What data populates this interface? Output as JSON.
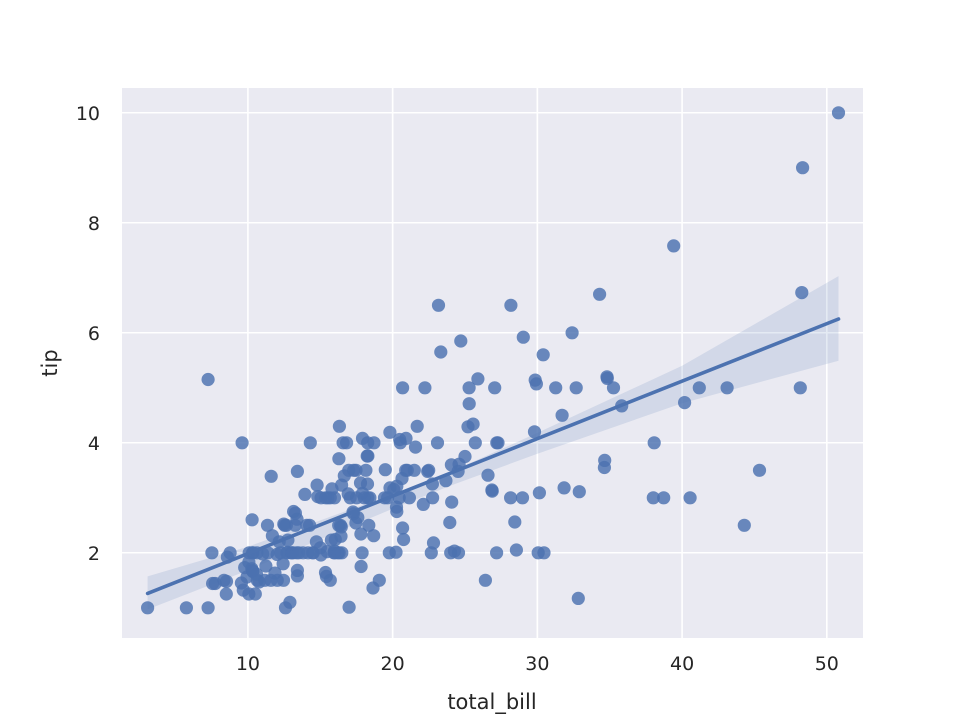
{
  "chart_data": {
    "type": "scatter",
    "xlabel": "total_bill",
    "ylabel": "tip",
    "xlim": [
      1.3,
      52.5
    ],
    "ylim": [
      0.45,
      10.45
    ],
    "xticks": [
      10,
      20,
      30,
      40,
      50
    ],
    "yticks": [
      2,
      4,
      6,
      8,
      10
    ],
    "grid": true,
    "background": "#EAEAF2",
    "point_color": "#4C72B0",
    "line_color": "#4C72B0",
    "band_color": "#4C72B0",
    "regression": {
      "x": [
        3.07,
        50.81
      ],
      "y": [
        1.26,
        6.25
      ]
    },
    "confidence_band": {
      "x": [
        3.07,
        10.0,
        17.0,
        20.0,
        24.0,
        30.0,
        40.0,
        50.81
      ],
      "upper": [
        1.57,
        2.11,
        2.78,
        3.06,
        3.47,
        4.18,
        5.4,
        7.03
      ],
      "lower": [
        0.97,
        1.68,
        2.47,
        2.8,
        3.22,
        3.8,
        4.72,
        5.49
      ]
    },
    "points": [
      [
        3.07,
        1.0
      ],
      [
        5.75,
        1.0
      ],
      [
        7.25,
        1.0
      ],
      [
        7.25,
        5.15
      ],
      [
        7.51,
        2.0
      ],
      [
        7.56,
        1.44
      ],
      [
        7.74,
        1.44
      ],
      [
        8.35,
        1.5
      ],
      [
        8.51,
        1.25
      ],
      [
        8.52,
        1.48
      ],
      [
        8.58,
        1.92
      ],
      [
        8.77,
        2.0
      ],
      [
        9.55,
        1.45
      ],
      [
        9.6,
        4.0
      ],
      [
        9.68,
        1.32
      ],
      [
        9.78,
        1.73
      ],
      [
        9.94,
        1.56
      ],
      [
        10.07,
        1.25
      ],
      [
        10.07,
        1.83
      ],
      [
        10.09,
        2.0
      ],
      [
        10.27,
        1.71
      ],
      [
        10.29,
        2.6
      ],
      [
        10.33,
        1.67
      ],
      [
        10.33,
        2.0
      ],
      [
        10.34,
        1.66
      ],
      [
        10.34,
        2.0
      ],
      [
        10.51,
        1.25
      ],
      [
        10.59,
        1.61
      ],
      [
        10.63,
        2.0
      ],
      [
        10.65,
        1.5
      ],
      [
        10.77,
        1.47
      ],
      [
        11.02,
        1.98
      ],
      [
        11.17,
        1.5
      ],
      [
        11.24,
        1.76
      ],
      [
        11.35,
        2.5
      ],
      [
        11.38,
        2.0
      ],
      [
        11.59,
        1.5
      ],
      [
        11.61,
        3.39
      ],
      [
        11.69,
        2.31
      ],
      [
        11.87,
        1.63
      ],
      [
        12.02,
        1.97
      ],
      [
        12.03,
        1.5
      ],
      [
        12.16,
        2.2
      ],
      [
        12.26,
        2.0
      ],
      [
        12.43,
        1.8
      ],
      [
        12.46,
        1.5
      ],
      [
        12.48,
        2.52
      ],
      [
        12.54,
        2.5
      ],
      [
        12.6,
        1.0
      ],
      [
        12.66,
        2.5
      ],
      [
        12.69,
        2.0
      ],
      [
        12.74,
        2.01
      ],
      [
        12.76,
        2.23
      ],
      [
        12.9,
        1.1
      ],
      [
        13.0,
        2.0
      ],
      [
        13.03,
        2.0
      ],
      [
        13.13,
        2.0
      ],
      [
        13.16,
        2.75
      ],
      [
        13.27,
        2.5
      ],
      [
        13.28,
        2.72
      ],
      [
        13.37,
        2.0
      ],
      [
        13.39,
        2.61
      ],
      [
        13.42,
        3.48
      ],
      [
        13.42,
        1.68
      ],
      [
        13.42,
        1.58
      ],
      [
        13.51,
        2.0
      ],
      [
        13.81,
        2.0
      ],
      [
        13.94,
        3.06
      ],
      [
        14.07,
        2.5
      ],
      [
        14.15,
        2.0
      ],
      [
        14.26,
        2.5
      ],
      [
        14.31,
        4.0
      ],
      [
        14.48,
        2.0
      ],
      [
        14.52,
        2.0
      ],
      [
        14.73,
        2.2
      ],
      [
        14.78,
        3.23
      ],
      [
        14.83,
        3.02
      ],
      [
        15.01,
        2.09
      ],
      [
        15.04,
        1.96
      ],
      [
        15.06,
        3.0
      ],
      [
        15.36,
        1.64
      ],
      [
        15.38,
        3.0
      ],
      [
        15.42,
        1.57
      ],
      [
        15.48,
        2.02
      ],
      [
        15.53,
        3.0
      ],
      [
        15.69,
        1.5
      ],
      [
        15.69,
        3.0
      ],
      [
        15.77,
        2.23
      ],
      [
        15.81,
        3.16
      ],
      [
        15.95,
        2.0
      ],
      [
        15.98,
        2.03
      ],
      [
        15.98,
        3.0
      ],
      [
        16.0,
        2.0
      ],
      [
        16.04,
        2.24
      ],
      [
        16.21,
        2.0
      ],
      [
        16.27,
        2.5
      ],
      [
        16.29,
        3.71
      ],
      [
        16.31,
        2.0
      ],
      [
        16.32,
        4.3
      ],
      [
        16.4,
        2.5
      ],
      [
        16.43,
        2.3
      ],
      [
        16.45,
        2.47
      ],
      [
        16.47,
        3.23
      ],
      [
        16.49,
        2.0
      ],
      [
        16.58,
        4.0
      ],
      [
        16.66,
        3.4
      ],
      [
        16.82,
        4.0
      ],
      [
        16.93,
        3.07
      ],
      [
        16.97,
        3.5
      ],
      [
        16.99,
        1.01
      ],
      [
        17.07,
        3.0
      ],
      [
        17.26,
        2.74
      ],
      [
        17.29,
        2.71
      ],
      [
        17.31,
        3.5
      ],
      [
        17.46,
        2.54
      ],
      [
        17.47,
        3.5
      ],
      [
        17.51,
        3.0
      ],
      [
        17.59,
        2.64
      ],
      [
        17.78,
        3.27
      ],
      [
        17.81,
        2.34
      ],
      [
        17.82,
        1.75
      ],
      [
        17.89,
        2.0
      ],
      [
        17.92,
        4.08
      ],
      [
        17.92,
        3.08
      ],
      [
        18.04,
        3.0
      ],
      [
        18.15,
        3.5
      ],
      [
        18.24,
        3.76
      ],
      [
        18.26,
        3.25
      ],
      [
        18.28,
        4.0
      ],
      [
        18.29,
        3.76
      ],
      [
        18.29,
        3.0
      ],
      [
        18.35,
        2.5
      ],
      [
        18.43,
        3.0
      ],
      [
        18.64,
        1.36
      ],
      [
        18.69,
        2.31
      ],
      [
        18.71,
        4.0
      ],
      [
        19.08,
        1.5
      ],
      [
        19.44,
        3.0
      ],
      [
        19.49,
        3.51
      ],
      [
        19.65,
        3.0
      ],
      [
        19.77,
        2.0
      ],
      [
        19.81,
        4.19
      ],
      [
        19.82,
        3.18
      ],
      [
        20.08,
        3.15
      ],
      [
        20.23,
        2.01
      ],
      [
        20.27,
        2.83
      ],
      [
        20.29,
        2.75
      ],
      [
        20.29,
        3.21
      ],
      [
        20.45,
        3.0
      ],
      [
        20.49,
        4.06
      ],
      [
        20.53,
        4.0
      ],
      [
        20.65,
        3.35
      ],
      [
        20.69,
        2.45
      ],
      [
        20.69,
        5.0
      ],
      [
        20.76,
        2.24
      ],
      [
        20.9,
        3.5
      ],
      [
        20.92,
        4.08
      ],
      [
        21.01,
        3.5
      ],
      [
        21.16,
        3.0
      ],
      [
        21.5,
        3.5
      ],
      [
        21.58,
        3.92
      ],
      [
        21.7,
        4.3
      ],
      [
        22.12,
        2.88
      ],
      [
        22.23,
        5.0
      ],
      [
        22.42,
        3.48
      ],
      [
        22.49,
        3.5
      ],
      [
        22.67,
        2.0
      ],
      [
        22.75,
        3.25
      ],
      [
        22.76,
        3.0
      ],
      [
        22.82,
        2.18
      ],
      [
        23.1,
        4.0
      ],
      [
        23.17,
        6.5
      ],
      [
        23.33,
        5.65
      ],
      [
        23.68,
        3.31
      ],
      [
        23.95,
        2.55
      ],
      [
        24.01,
        2.0
      ],
      [
        24.06,
        3.6
      ],
      [
        24.08,
        2.92
      ],
      [
        24.27,
        2.03
      ],
      [
        24.52,
        3.48
      ],
      [
        24.55,
        2.0
      ],
      [
        24.59,
        3.61
      ],
      [
        24.71,
        5.85
      ],
      [
        25.0,
        3.75
      ],
      [
        25.21,
        4.29
      ],
      [
        25.28,
        5.0
      ],
      [
        25.29,
        4.71
      ],
      [
        25.56,
        4.34
      ],
      [
        25.71,
        4.0
      ],
      [
        25.89,
        5.16
      ],
      [
        26.41,
        1.5
      ],
      [
        26.59,
        3.41
      ],
      [
        26.86,
        3.14
      ],
      [
        26.88,
        3.12
      ],
      [
        27.05,
        5.0
      ],
      [
        27.18,
        2.0
      ],
      [
        27.2,
        4.0
      ],
      [
        27.28,
        4.0
      ],
      [
        28.15,
        3.0
      ],
      [
        28.17,
        6.5
      ],
      [
        28.44,
        2.56
      ],
      [
        28.55,
        2.05
      ],
      [
        28.97,
        3.0
      ],
      [
        29.03,
        5.92
      ],
      [
        29.8,
        4.2
      ],
      [
        29.85,
        5.14
      ],
      [
        29.93,
        5.07
      ],
      [
        30.06,
        2.0
      ],
      [
        30.14,
        3.09
      ],
      [
        30.4,
        5.6
      ],
      [
        30.46,
        2.0
      ],
      [
        31.27,
        5.0
      ],
      [
        31.71,
        4.5
      ],
      [
        31.85,
        3.18
      ],
      [
        32.4,
        6.0
      ],
      [
        32.68,
        5.0
      ],
      [
        32.83,
        1.17
      ],
      [
        32.9,
        3.11
      ],
      [
        34.3,
        6.7
      ],
      [
        34.63,
        3.55
      ],
      [
        34.65,
        3.68
      ],
      [
        34.81,
        5.2
      ],
      [
        34.83,
        5.17
      ],
      [
        35.26,
        5.0
      ],
      [
        35.83,
        4.67
      ],
      [
        38.01,
        3.0
      ],
      [
        38.07,
        4.0
      ],
      [
        38.73,
        3.0
      ],
      [
        39.42,
        7.58
      ],
      [
        40.17,
        4.73
      ],
      [
        40.55,
        3.0
      ],
      [
        41.19,
        5.0
      ],
      [
        43.11,
        5.0
      ],
      [
        44.3,
        2.5
      ],
      [
        45.35,
        3.5
      ],
      [
        48.17,
        5.0
      ],
      [
        48.27,
        6.73
      ],
      [
        48.33,
        9.0
      ],
      [
        50.81,
        10.0
      ]
    ]
  }
}
